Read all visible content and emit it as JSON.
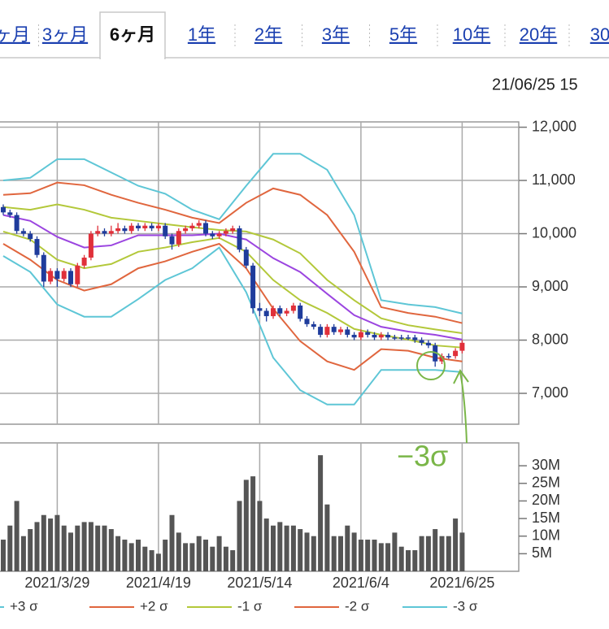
{
  "tabs": [
    "ヶ月",
    "3ヶ月",
    "6ヶ月",
    "1年",
    "2年",
    "3年",
    "5年",
    "10年",
    "20年",
    "30"
  ],
  "selected_tab": 2,
  "timestamp": "21/06/25 15",
  "chart_data": [
    {
      "type": "candlestick",
      "up_color": "#e0303a",
      "down_color": "#1f3c9c",
      "ylim": [
        6420,
        12100
      ],
      "yticks": [
        {
          "value": 12000,
          "label": "12,000"
        },
        {
          "value": 11000,
          "label": "11,000"
        },
        {
          "value": 10000,
          "label": "10,000"
        },
        {
          "value": 9000,
          "label": "9,000"
        },
        {
          "value": 8000,
          "label": "8,000"
        },
        {
          "value": 7000,
          "label": "7,000"
        }
      ],
      "grid": true,
      "ohlc": [
        [
          10500,
          10550,
          10350,
          10400
        ],
        [
          10400,
          10450,
          10300,
          10350
        ],
        [
          10350,
          10400,
          10000,
          10050
        ],
        [
          10050,
          10100,
          9950,
          10000
        ],
        [
          10000,
          10050,
          9850,
          9900
        ],
        [
          9900,
          9950,
          9550,
          9600
        ],
        [
          9600,
          9650,
          9000,
          9100
        ],
        [
          9100,
          9350,
          9050,
          9300
        ],
        [
          9300,
          9350,
          9000,
          9150
        ],
        [
          9150,
          9350,
          9100,
          9300
        ],
        [
          9300,
          9350,
          9000,
          9050
        ],
        [
          9050,
          9450,
          9000,
          9400
        ],
        [
          9400,
          9600,
          9350,
          9550
        ],
        [
          9550,
          10050,
          9500,
          10000
        ],
        [
          10000,
          10150,
          9950,
          10050
        ],
        [
          10050,
          10100,
          9950,
          10000
        ],
        [
          10000,
          10150,
          9950,
          10050
        ],
        [
          10050,
          10200,
          10000,
          10100
        ],
        [
          10100,
          10150,
          10000,
          10050
        ],
        [
          10050,
          10200,
          10000,
          10150
        ],
        [
          10150,
          10200,
          10050,
          10100
        ],
        [
          10100,
          10200,
          10050,
          10150
        ],
        [
          10150,
          10200,
          10050,
          10100
        ],
        [
          10100,
          10200,
          10050,
          10150
        ],
        [
          10150,
          10200,
          9900,
          9950
        ],
        [
          9950,
          10000,
          9700,
          9800
        ],
        [
          9800,
          10100,
          9750,
          10050
        ],
        [
          10050,
          10150,
          10000,
          10100
        ],
        [
          10100,
          10200,
          10050,
          10150
        ],
        [
          10150,
          10250,
          10100,
          10200
        ],
        [
          10200,
          10250,
          9950,
          10000
        ],
        [
          10000,
          10050,
          9900,
          9950
        ],
        [
          9950,
          10050,
          9900,
          10000
        ],
        [
          10000,
          10100,
          9950,
          10050
        ],
        [
          10050,
          10150,
          10000,
          10100
        ],
        [
          10100,
          10150,
          9650,
          9700
        ],
        [
          9700,
          9750,
          9350,
          9400
        ],
        [
          9400,
          9450,
          8500,
          8600
        ],
        [
          8600,
          8700,
          8450,
          8550
        ],
        [
          8550,
          8600,
          8350,
          8450
        ],
        [
          8450,
          8650,
          8400,
          8600
        ],
        [
          8600,
          8650,
          8450,
          8500
        ],
        [
          8500,
          8600,
          8450,
          8550
        ],
        [
          8550,
          8700,
          8500,
          8650
        ],
        [
          8650,
          8700,
          8350,
          8400
        ],
        [
          8400,
          8450,
          8250,
          8300
        ],
        [
          8300,
          8350,
          8200,
          8250
        ],
        [
          8250,
          8300,
          8050,
          8100
        ],
        [
          8100,
          8300,
          8050,
          8250
        ],
        [
          8250,
          8300,
          8100,
          8150
        ],
        [
          8150,
          8250,
          8100,
          8200
        ],
        [
          8200,
          8250,
          8050,
          8100
        ],
        [
          8100,
          8150,
          8000,
          8050
        ],
        [
          8050,
          8200,
          8000,
          8150
        ],
        [
          8150,
          8200,
          8050,
          8100
        ],
        [
          8100,
          8150,
          8000,
          8050
        ],
        [
          8050,
          8150,
          8000,
          8100
        ],
        [
          8100,
          8150,
          8000,
          8050
        ],
        [
          8050,
          8100,
          8000,
          8050
        ],
        [
          8050,
          8100,
          8000,
          8050
        ],
        [
          8050,
          8100,
          8000,
          8050
        ],
        [
          8050,
          8100,
          7950,
          8000
        ],
        [
          8000,
          8050,
          7900,
          7950
        ],
        [
          7950,
          8000,
          7850,
          7900
        ],
        [
          7900,
          7950,
          7500,
          7600
        ],
        [
          7600,
          7750,
          7550,
          7700
        ],
        [
          7700,
          7750,
          7650,
          7700
        ],
        [
          7700,
          7850,
          7650,
          7800
        ],
        [
          7800,
          8000,
          7750,
          7950
        ]
      ],
      "bands": {
        "x": [
          0,
          4,
          8,
          12,
          16,
          20,
          24,
          28,
          32,
          36,
          40,
          44,
          48,
          52,
          56,
          60,
          64,
          68
        ],
        "series": [
          {
            "name": "+3 σ",
            "color": "#5ec6d6",
            "values": [
              11000,
              11050,
              11400,
              11400,
              11150,
              10900,
              10750,
              10450,
              10270,
              10900,
              11500,
              11500,
              11200,
              10350,
              8750,
              8670,
              8620,
              8500
            ]
          },
          {
            "name": "+2 σ",
            "color": "#e0663e",
            "values": [
              10730,
              10760,
              10960,
              10910,
              10730,
              10580,
              10450,
              10300,
              10200,
              10580,
              10850,
              10730,
              10350,
              9660,
              8620,
              8510,
              8440,
              8320
            ]
          },
          {
            "color": "#b3c83a",
            "values": [
              10500,
              10450,
              10550,
              10450,
              10300,
              10240,
              10180,
              10120,
              10070,
              10040,
              9890,
              9630,
              9130,
              8750,
              8410,
              8280,
              8200,
              8130
            ]
          },
          {
            "color": "#9b45e0",
            "values": [
              10350,
              10240,
              9940,
              9740,
              9780,
              9970,
              9970,
              9970,
              10000,
              9890,
              9540,
              9280,
              8870,
              8470,
              8250,
              8160,
              8100,
              8010
            ]
          },
          {
            "name": "-1 σ",
            "color": "#b3c83a",
            "values": [
              10040,
              9890,
              9510,
              9350,
              9430,
              9660,
              9740,
              9840,
              9920,
              9660,
              9130,
              8750,
              8510,
              8210,
              8100,
              8010,
              7900,
              7860
            ]
          },
          {
            "name": "-2 σ",
            "color": "#e0663e",
            "values": [
              9810,
              9510,
              9130,
              8930,
              9050,
              9350,
              9480,
              9660,
              9810,
              9350,
              8590,
              7980,
              7600,
              7440,
              7830,
              7800,
              7670,
              7600
            ]
          },
          {
            "name": "-3 σ",
            "color": "#5ec6d6",
            "values": [
              9580,
              9280,
              8670,
              8440,
              8440,
              8770,
              9130,
              9350,
              9740,
              8900,
              7670,
              7060,
              6790,
              6790,
              7440,
              7440,
              7440,
              7400
            ]
          }
        ]
      },
      "annotation": "−3σ",
      "annotation_color": "#7ab648"
    },
    {
      "type": "bar",
      "color": "#555555",
      "categories": [
        null,
        null,
        null,
        null,
        null,
        null,
        null,
        null,
        "2021/3/29",
        null,
        null,
        null,
        null,
        null,
        null,
        null,
        null,
        null,
        null,
        null,
        null,
        null,
        null,
        "2021/4/19",
        null,
        null,
        null,
        null,
        null,
        null,
        null,
        null,
        null,
        null,
        null,
        null,
        null,
        null,
        "2021/5/14",
        null,
        null,
        null,
        null,
        null,
        null,
        null,
        null,
        null,
        null,
        null,
        null,
        null,
        null,
        "2021/6/4",
        null,
        null,
        null,
        null,
        null,
        null,
        null,
        null,
        null,
        null,
        null,
        null,
        null,
        null,
        "2021/6/25"
      ],
      "values": [
        9,
        13,
        20,
        10,
        12,
        14,
        16,
        15,
        16,
        13,
        11,
        13,
        14,
        14,
        13,
        13,
        12,
        10,
        9,
        8,
        9,
        7,
        6,
        5,
        9,
        16,
        11,
        8,
        8,
        10,
        9,
        7,
        10,
        7,
        6,
        20,
        26,
        27,
        20,
        15,
        13,
        14,
        13,
        13,
        12,
        11,
        10,
        33,
        19,
        10,
        10,
        13,
        11,
        9,
        9,
        9,
        8,
        8,
        11,
        7,
        6,
        6,
        10,
        10,
        12,
        10,
        10,
        15,
        11
      ],
      "ylim": [
        0,
        36.5
      ],
      "yticks": [
        {
          "value": 30,
          "label": "30M"
        },
        {
          "value": 25,
          "label": "25M"
        },
        {
          "value": 20,
          "label": "20M"
        },
        {
          "value": 15,
          "label": "15M"
        },
        {
          "value": 10,
          "label": "10M"
        },
        {
          "value": 5,
          "label": "5M"
        }
      ]
    }
  ]
}
